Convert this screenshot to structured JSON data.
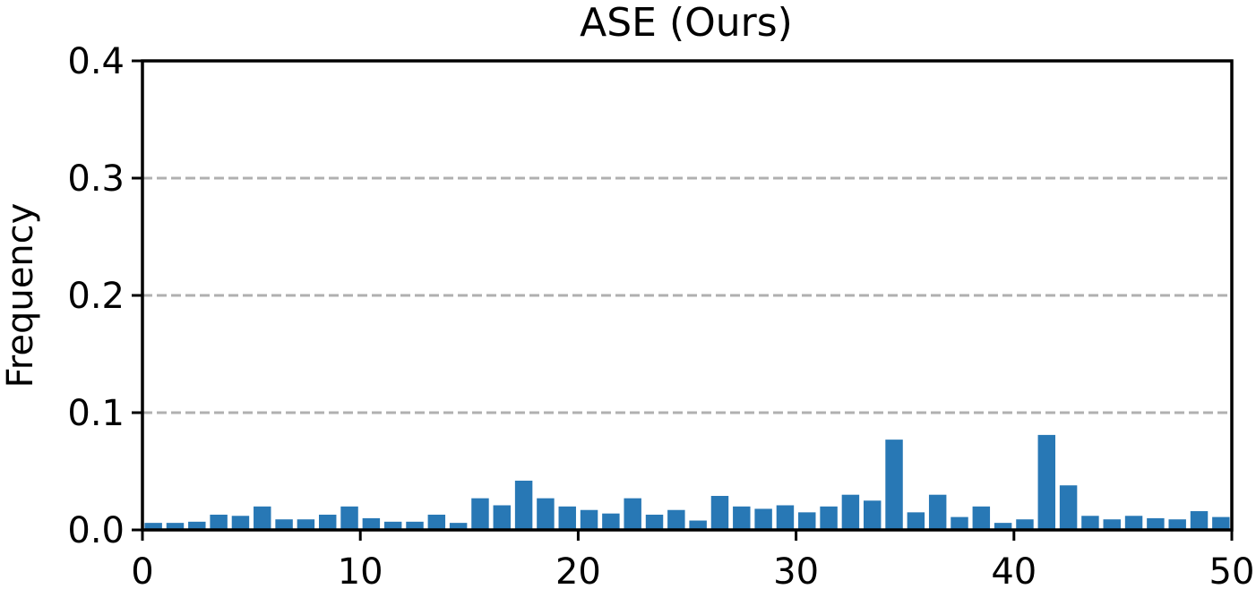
{
  "chart_data": {
    "type": "bar",
    "title": "ASE (Ours)",
    "xlabel": "",
    "ylabel": "Frequency",
    "xlim": [
      0,
      50
    ],
    "ylim": [
      0,
      0.4
    ],
    "x_ticks": [
      "0",
      "10",
      "20",
      "30",
      "40",
      "50"
    ],
    "y_ticks": [
      "0.0",
      "0.1",
      "0.2",
      "0.3",
      "0.4"
    ],
    "grid": "horizontal dashed at 0.1, 0.2, 0.3",
    "bar_color": "#2878b5",
    "grid_color": "#b0b0b0",
    "categories": [
      0,
      1,
      2,
      3,
      4,
      5,
      6,
      7,
      8,
      9,
      10,
      11,
      12,
      13,
      14,
      15,
      16,
      17,
      18,
      19,
      20,
      21,
      22,
      23,
      24,
      25,
      26,
      27,
      28,
      29,
      30,
      31,
      32,
      33,
      34,
      35,
      36,
      37,
      38,
      39,
      40,
      41,
      42,
      43,
      44,
      45,
      46,
      47,
      48,
      49
    ],
    "values": [
      0.006,
      0.006,
      0.007,
      0.013,
      0.012,
      0.02,
      0.009,
      0.009,
      0.013,
      0.02,
      0.01,
      0.007,
      0.007,
      0.013,
      0.006,
      0.027,
      0.021,
      0.042,
      0.027,
      0.02,
      0.017,
      0.014,
      0.027,
      0.013,
      0.017,
      0.008,
      0.029,
      0.02,
      0.018,
      0.021,
      0.015,
      0.02,
      0.03,
      0.025,
      0.077,
      0.015,
      0.03,
      0.011,
      0.02,
      0.006,
      0.009,
      0.081,
      0.038,
      0.012,
      0.009,
      0.012,
      0.01,
      0.009,
      0.016,
      0.011
    ]
  }
}
